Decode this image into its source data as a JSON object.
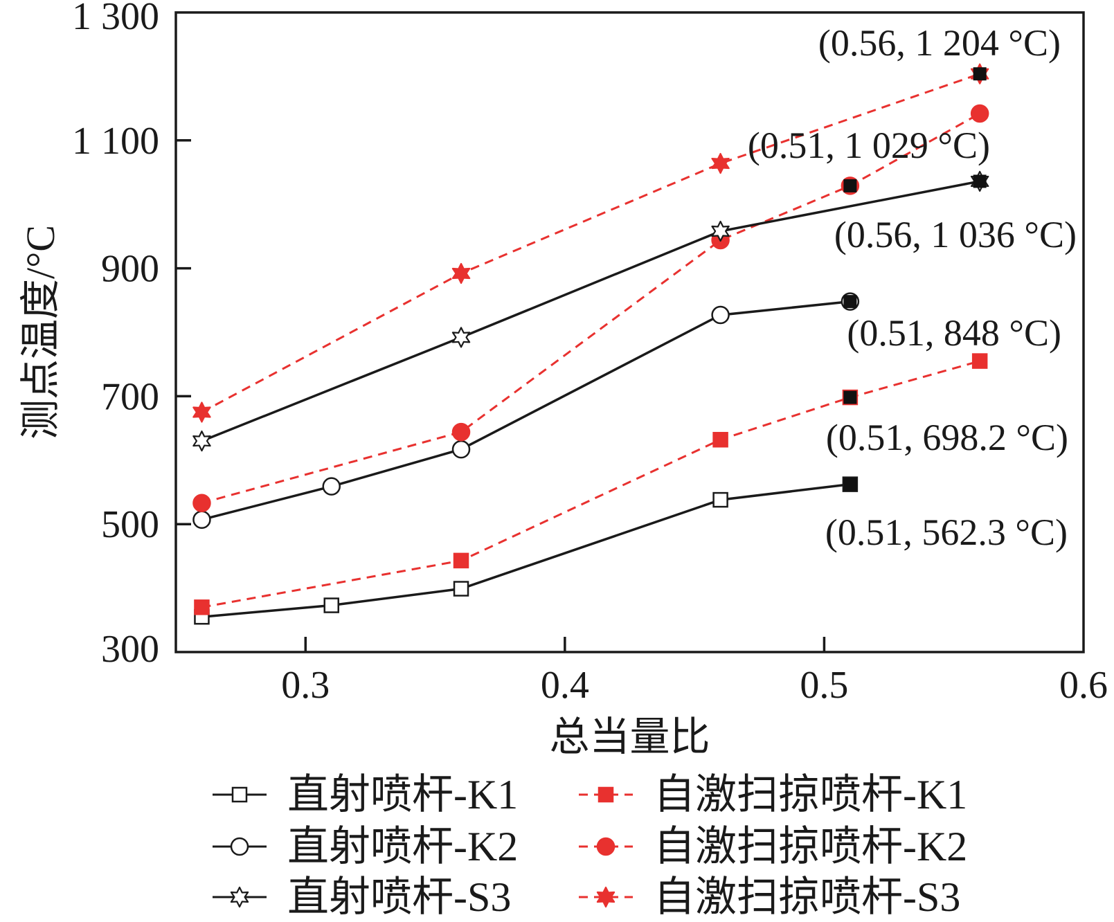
{
  "chart_data": {
    "type": "line",
    "xlabel": "总当量比",
    "ylabel": "测点温度/°C",
    "xlim": [
      0.25,
      0.6
    ],
    "ylim": [
      300,
      1300
    ],
    "xticks": [
      {
        "value": 0.3,
        "label": "0.3"
      },
      {
        "value": 0.4,
        "label": "0.4"
      },
      {
        "value": 0.5,
        "label": "0.5"
      },
      {
        "value": 0.6,
        "label": "0.6"
      }
    ],
    "yticks": [
      {
        "value": 300,
        "label": "300"
      },
      {
        "value": 500,
        "label": "500"
      },
      {
        "value": 700,
        "label": "700"
      },
      {
        "value": 900,
        "label": "900"
      },
      {
        "value": 1100,
        "label": "1 100"
      },
      {
        "value": 1300,
        "label": "1 300"
      }
    ],
    "series": [
      {
        "name": "直射喷杆-K1",
        "color": "#1a1a1a",
        "dashed": false,
        "marker": "square",
        "filled": false,
        "points": [
          [
            0.26,
            355
          ],
          [
            0.31,
            373
          ],
          [
            0.36,
            399
          ],
          [
            0.46,
            538
          ],
          [
            0.51,
            562.3
          ]
        ]
      },
      {
        "name": "自激扫掠喷杆-K1",
        "color": "#e8312f",
        "dashed": true,
        "marker": "square",
        "filled": true,
        "points": [
          [
            0.26,
            370
          ],
          [
            0.36,
            443
          ],
          [
            0.46,
            632
          ],
          [
            0.51,
            698.2
          ],
          [
            0.56,
            755
          ]
        ]
      },
      {
        "name": "直射喷杆-K2",
        "color": "#1a1a1a",
        "dashed": false,
        "marker": "circle",
        "filled": false,
        "points": [
          [
            0.26,
            507
          ],
          [
            0.31,
            559
          ],
          [
            0.36,
            617
          ],
          [
            0.46,
            827
          ],
          [
            0.51,
            848
          ]
        ]
      },
      {
        "name": "自激扫掠喷杆-K2",
        "color": "#e8312f",
        "dashed": true,
        "marker": "circle",
        "filled": true,
        "points": [
          [
            0.26,
            533
          ],
          [
            0.36,
            644
          ],
          [
            0.46,
            944
          ],
          [
            0.51,
            1029
          ],
          [
            0.56,
            1142
          ]
        ]
      },
      {
        "name": "直射喷杆-S3",
        "color": "#1a1a1a",
        "dashed": false,
        "marker": "star",
        "filled": false,
        "points": [
          [
            0.26,
            630
          ],
          [
            0.36,
            792
          ],
          [
            0.46,
            958
          ],
          [
            0.56,
            1036
          ]
        ]
      },
      {
        "name": "自激扫掠喷杆-S3",
        "color": "#e8312f",
        "dashed": true,
        "marker": "star",
        "filled": true,
        "points": [
          [
            0.26,
            675
          ],
          [
            0.36,
            892
          ],
          [
            0.46,
            1064
          ],
          [
            0.56,
            1204
          ]
        ]
      }
    ],
    "highlighted_points": [
      [
        0.56,
        1204
      ],
      [
        0.51,
        1029
      ],
      [
        0.56,
        1036
      ],
      [
        0.51,
        848
      ],
      [
        0.51,
        698.2
      ],
      [
        0.51,
        562.3
      ]
    ],
    "annotations": [
      {
        "text": "(0.56, 1 204 °C)"
      },
      {
        "text": "(0.51, 1 029 °C)"
      },
      {
        "text": "(0.56, 1 036 °C)"
      },
      {
        "text": "(0.51, 848 °C)"
      },
      {
        "text": "(0.51, 698.2 °C)"
      },
      {
        "text": "(0.51, 562.3 °C)"
      }
    ],
    "legend": {
      "placement": "bottom",
      "entries": [
        "直射喷杆-K1",
        "自激扫掠喷杆-K1",
        "直射喷杆-K2",
        "自激扫掠喷杆-K2",
        "直射喷杆-S3",
        "自激扫掠喷杆-S3"
      ]
    }
  }
}
